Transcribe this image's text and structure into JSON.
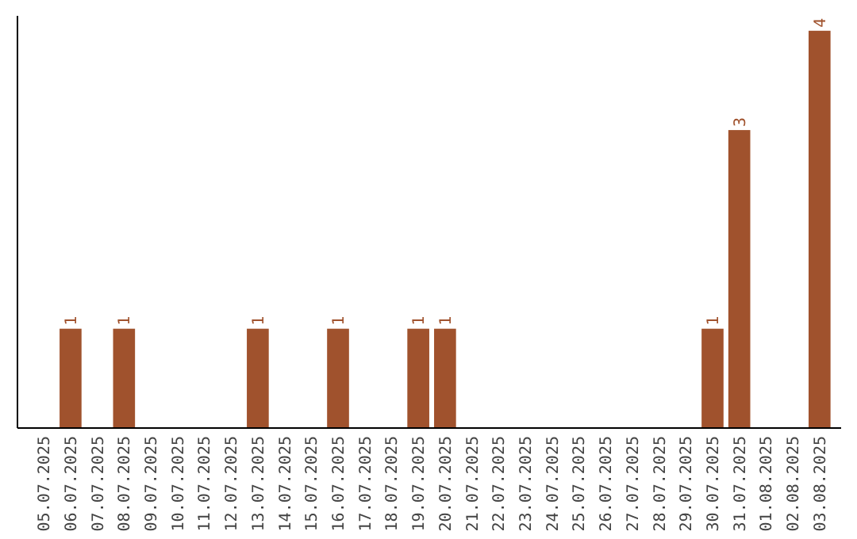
{
  "chart_data": {
    "type": "bar",
    "categories": [
      "05.07.2025",
      "06.07.2025",
      "07.07.2025",
      "08.07.2025",
      "09.07.2025",
      "10.07.2025",
      "11.07.2025",
      "12.07.2025",
      "13.07.2025",
      "14.07.2025",
      "15.07.2025",
      "16.07.2025",
      "17.07.2025",
      "18.07.2025",
      "19.07.2025",
      "20.07.2025",
      "21.07.2025",
      "22.07.2025",
      "23.07.2025",
      "24.07.2025",
      "25.07.2025",
      "26.07.2025",
      "27.07.2025",
      "28.07.2025",
      "29.07.2025",
      "30.07.2025",
      "31.07.2025",
      "01.08.2025",
      "02.08.2025",
      "03.08.2025"
    ],
    "values": [
      0,
      1,
      0,
      1,
      0,
      0,
      0,
      0,
      1,
      0,
      0,
      1,
      0,
      0,
      1,
      1,
      0,
      0,
      0,
      0,
      0,
      0,
      0,
      0,
      0,
      1,
      3,
      0,
      0,
      4
    ],
    "value_labels": [
      null,
      "1",
      null,
      "1",
      null,
      null,
      null,
      null,
      "1",
      null,
      null,
      "1",
      null,
      null,
      "1",
      "1",
      null,
      null,
      null,
      null,
      null,
      null,
      null,
      null,
      null,
      "1",
      "3",
      null,
      null,
      "4"
    ],
    "color": "#a0522d",
    "ylim": [
      0,
      4.15
    ]
  }
}
